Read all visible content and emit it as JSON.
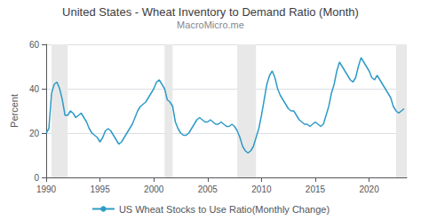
{
  "chart_data": {
    "type": "line",
    "title": "United States - Wheat Inventory to Demand Ratio (Month)",
    "subtitle": "MacroMicro.me",
    "ylabel": "Percent",
    "x": [
      1990.0,
      1990.25,
      1990.5,
      1990.75,
      1991.0,
      1991.25,
      1991.5,
      1991.75,
      1992.0,
      1992.25,
      1992.5,
      1992.75,
      1993.0,
      1993.25,
      1993.5,
      1993.75,
      1994.0,
      1994.25,
      1994.5,
      1994.75,
      1995.0,
      1995.25,
      1995.5,
      1995.75,
      1996.0,
      1996.25,
      1996.5,
      1996.75,
      1997.0,
      1997.25,
      1997.5,
      1997.75,
      1998.0,
      1998.25,
      1998.5,
      1998.75,
      1999.0,
      1999.25,
      1999.5,
      1999.75,
      2000.0,
      2000.25,
      2000.5,
      2000.75,
      2001.0,
      2001.25,
      2001.5,
      2001.75,
      2002.0,
      2002.25,
      2002.5,
      2002.75,
      2003.0,
      2003.25,
      2003.5,
      2003.75,
      2004.0,
      2004.25,
      2004.5,
      2004.75,
      2005.0,
      2005.25,
      2005.5,
      2005.75,
      2006.0,
      2006.25,
      2006.5,
      2006.75,
      2007.0,
      2007.25,
      2007.5,
      2007.75,
      2008.0,
      2008.25,
      2008.5,
      2008.75,
      2009.0,
      2009.25,
      2009.5,
      2009.75,
      2010.0,
      2010.25,
      2010.5,
      2010.75,
      2011.0,
      2011.25,
      2011.5,
      2011.75,
      2012.0,
      2012.25,
      2012.5,
      2012.75,
      2013.0,
      2013.25,
      2013.5,
      2013.75,
      2014.0,
      2014.25,
      2014.5,
      2014.75,
      2015.0,
      2015.25,
      2015.5,
      2015.75,
      2016.0,
      2016.25,
      2016.5,
      2016.75,
      2017.0,
      2017.25,
      2017.5,
      2017.75,
      2018.0,
      2018.25,
      2018.5,
      2018.75,
      2019.0,
      2019.25,
      2019.5,
      2019.75,
      2020.0,
      2020.25,
      2020.5,
      2020.75,
      2021.0,
      2021.25,
      2021.5,
      2021.75,
      2022.0,
      2022.25,
      2022.5,
      2022.75,
      2023.0,
      2023.25
    ],
    "series": [
      {
        "name": "US Wheat Stocks to Use Ratio(Monthly Change)",
        "color": "#2e9bc7",
        "values": [
          20,
          22,
          38,
          42,
          43,
          40,
          35,
          28,
          28,
          30,
          29,
          27,
          28,
          29,
          27,
          25,
          22,
          20,
          19,
          18,
          16,
          18,
          21,
          22,
          21,
          19,
          17,
          15,
          16,
          18,
          20,
          22,
          24,
          27,
          30,
          32,
          33,
          34,
          36,
          38,
          40,
          43,
          44,
          42,
          40,
          35,
          34,
          32,
          25,
          22,
          20,
          19,
          19,
          20,
          22,
          24,
          26,
          27,
          26,
          25,
          25,
          26,
          25,
          24,
          24,
          25,
          24,
          23,
          23,
          24,
          23,
          21,
          18,
          14,
          12,
          11,
          12,
          14,
          18,
          22,
          28,
          35,
          42,
          46,
          48,
          45,
          40,
          37,
          35,
          33,
          31,
          30,
          30,
          28,
          26,
          25,
          24,
          24,
          23,
          24,
          25,
          24,
          23,
          24,
          28,
          32,
          38,
          42,
          48,
          52,
          50,
          48,
          46,
          44,
          43,
          45,
          50,
          54,
          52,
          50,
          48,
          45,
          44,
          46,
          44,
          42,
          40,
          38,
          36,
          32,
          30,
          29,
          30,
          31
        ]
      }
    ],
    "shaded_regions": [
      [
        1990.5,
        1992.0
      ],
      [
        2001.0,
        2001.75
      ],
      [
        2007.75,
        2009.5
      ],
      [
        2022.5,
        2023.5
      ]
    ],
    "shaded_color": "#e8e8e8",
    "xlim": [
      1990,
      2023.5
    ],
    "ylim": [
      0,
      60
    ],
    "xticks": [
      1990,
      1995,
      2000,
      2005,
      2010,
      2015,
      2020
    ],
    "yticks": [
      0,
      20,
      40,
      60
    ],
    "grid": true
  }
}
